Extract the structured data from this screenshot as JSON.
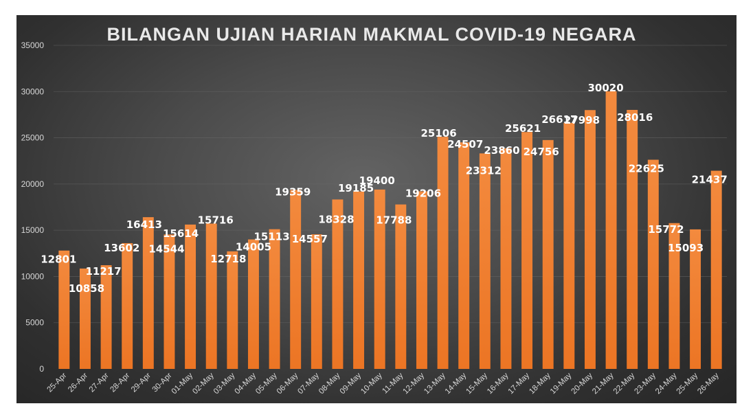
{
  "chart_data": {
    "type": "bar",
    "title": "BILANGAN UJIAN HARIAN MAKMAL COVID-19 NEGARA",
    "xlabel": "",
    "ylabel": "",
    "ylim": [
      0,
      35000
    ],
    "yticks": [
      0,
      5000,
      10000,
      15000,
      20000,
      25000,
      30000,
      35000
    ],
    "grid": true,
    "bar_color": "#f07f2c",
    "categories": [
      "25-Apr",
      "26-Apr",
      "27-Apr",
      "28-Apr",
      "29-Apr",
      "30-Apr",
      "01-May",
      "02-May",
      "03-May",
      "04-May",
      "05-May",
      "06-May",
      "07-May",
      "08-May",
      "09-May",
      "10-May",
      "11-May",
      "12-May",
      "13-May",
      "14-May",
      "15-May",
      "16-May",
      "17-May",
      "18-May",
      "19-May",
      "20-May",
      "21-May",
      "22-May",
      "23-May",
      "24-May",
      "25-May",
      "26-May"
    ],
    "values": [
      12801,
      10858,
      11217,
      13602,
      16413,
      14544,
      15614,
      15716,
      12718,
      14005,
      15113,
      19359,
      14557,
      18328,
      19185,
      19400,
      17788,
      19206,
      25106,
      24507,
      23312,
      23860,
      25621,
      24756,
      26617,
      27998,
      30020,
      28016,
      22625,
      15772,
      15093,
      21437
    ]
  }
}
